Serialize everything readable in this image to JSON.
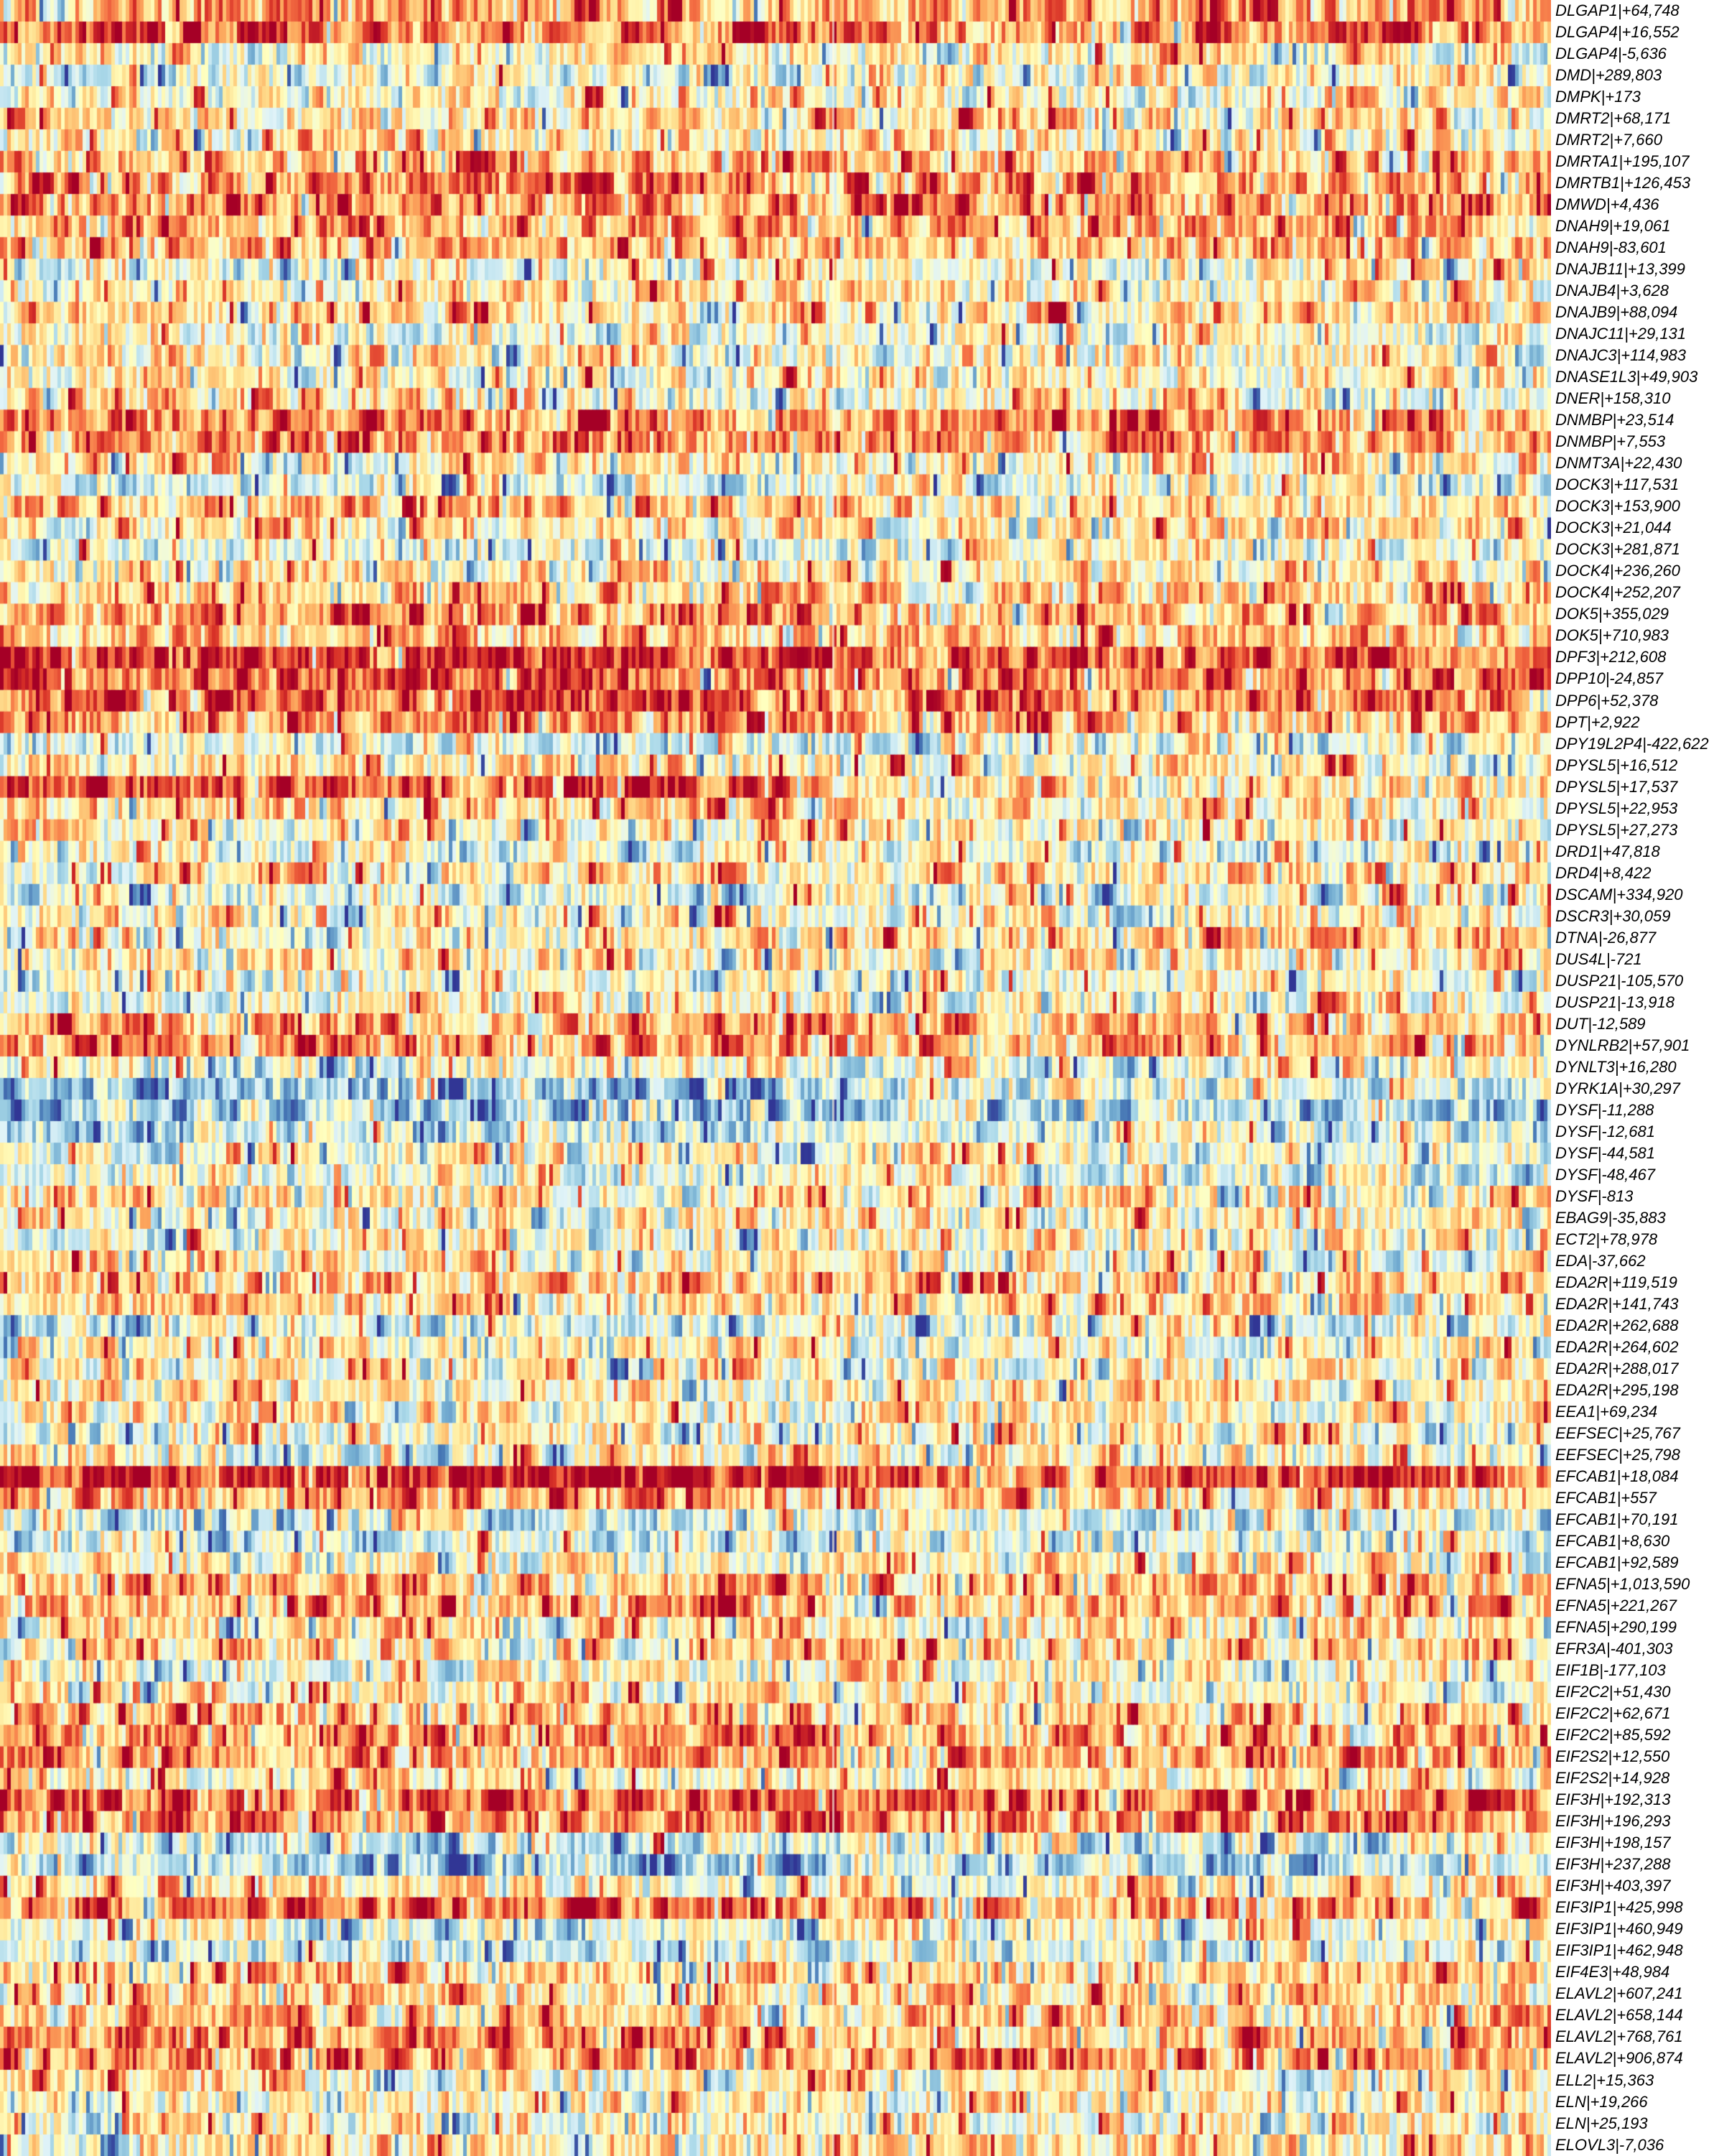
{
  "figure": {
    "background": "#ffffff",
    "description": "Genome-region heatmap: 100 labelled rows (gene|offset), ~430 unlabelled sample columns, red-yellow-blue colour scale, row labels in italics on the right"
  },
  "chart_data": {
    "type": "heatmap",
    "title": "",
    "xlabel": "",
    "ylabel": "",
    "column_labels_visible": false,
    "n_columns_approx": 432,
    "group_split_fraction": 0.537,
    "colormap": "RdYlBu reversed (blue = low, pale yellow = mid, red = high)",
    "palette": [
      "#313695",
      "#4575b4",
      "#74add1",
      "#abd9e9",
      "#e0f3f8",
      "#ffffbf",
      "#fee090",
      "#fdae61",
      "#f46d43",
      "#d73027",
      "#a50026"
    ],
    "value_scale": [
      -1,
      1
    ],
    "row_format": [
      "label",
      "mean_intensity_left_block",
      "mean_intensity_right_block"
    ],
    "rows": [
      [
        "DLGAP1|+64,748",
        0.4,
        0.4
      ],
      [
        "DLGAP4|+16,552",
        0.6,
        0.55
      ],
      [
        "DLGAP4|-5,636",
        0.0,
        0.05
      ],
      [
        "DMD|+289,803",
        -0.1,
        0.05
      ],
      [
        "DMPK|+173",
        0.05,
        0.0
      ],
      [
        "DMRT2|+68,171",
        0.2,
        0.15
      ],
      [
        "DMRT2|+7,660",
        0.1,
        0.15
      ],
      [
        "DMRTA1|+195,107",
        0.35,
        0.3
      ],
      [
        "DMRTB1|+126,453",
        0.55,
        0.45
      ],
      [
        "DMWD|+4,436",
        0.5,
        0.4
      ],
      [
        "DNAH9|+19,061",
        0.4,
        0.35
      ],
      [
        "DNAH9|-83,601",
        0.35,
        0.3
      ],
      [
        "DNAJB11|+13,399",
        -0.1,
        0.0
      ],
      [
        "DNAJB4|+3,628",
        0.1,
        0.05
      ],
      [
        "DNAJB9|+88,094",
        0.15,
        0.1
      ],
      [
        "DNAJC11|+29,131",
        -0.05,
        0.0
      ],
      [
        "DNAJC3|+114,983",
        0.05,
        0.05
      ],
      [
        "DNASE1L3|+49,903",
        0.0,
        0.05
      ],
      [
        "DNER|+158,310",
        0.1,
        0.05
      ],
      [
        "DNMBP|+23,514",
        0.5,
        0.45
      ],
      [
        "DNMBP|+7,553",
        0.45,
        0.35
      ],
      [
        "DNMT3A|+22,430",
        0.1,
        0.1
      ],
      [
        "DOCK3|+117,531",
        -0.15,
        -0.05
      ],
      [
        "DOCK3|+153,900",
        0.3,
        0.25
      ],
      [
        "DOCK3|+21,044",
        0.1,
        0.1
      ],
      [
        "DOCK3|+281,871",
        -0.1,
        -0.05
      ],
      [
        "DOCK4|+236,260",
        0.15,
        0.1
      ],
      [
        "DOCK4|+252,207",
        0.25,
        0.2
      ],
      [
        "DOK5|+355,029",
        0.4,
        0.3
      ],
      [
        "DOK5|+710,983",
        0.3,
        0.25
      ],
      [
        "DPF3|+212,608",
        0.8,
        0.6
      ],
      [
        "DPP10|-24,857",
        0.6,
        0.5
      ],
      [
        "DPP6|+52,378",
        0.65,
        0.5
      ],
      [
        "DPT|+2,922",
        0.45,
        0.3
      ],
      [
        "DPY19L2P4|-422,622",
        -0.2,
        -0.1
      ],
      [
        "DPYSL5|+16,512",
        0.1,
        0.1
      ],
      [
        "DPYSL5|+17,537",
        0.7,
        0.15
      ],
      [
        "DPYSL5|+22,953",
        0.15,
        0.1
      ],
      [
        "DPYSL5|+27,273",
        0.05,
        0.05
      ],
      [
        "DRD1|+47,818",
        -0.1,
        0.0
      ],
      [
        "DRD4|+8,422",
        0.05,
        0.1
      ],
      [
        "DSCAM|+334,920",
        -0.15,
        -0.05
      ],
      [
        "DSCR3|+30,059",
        0.05,
        0.0
      ],
      [
        "DTNA|-26,877",
        0.1,
        0.25
      ],
      [
        "DUS4L|-721",
        0.1,
        0.05
      ],
      [
        "DUSP21|-105,570",
        -0.1,
        -0.05
      ],
      [
        "DUSP21|-13,918",
        0.0,
        0.0
      ],
      [
        "DUT|-12,589",
        0.4,
        0.25
      ],
      [
        "DYNLRB2|+57,901",
        0.5,
        0.4
      ],
      [
        "DYNLT3|+16,280",
        -0.05,
        0.0
      ],
      [
        "DYRK1A|+30,297",
        -0.45,
        -0.2
      ],
      [
        "DYSF|-11,288",
        -0.45,
        -0.3
      ],
      [
        "DYSF|-12,681",
        -0.25,
        -0.15
      ],
      [
        "DYSF|-44,581",
        0.0,
        -0.05
      ],
      [
        "DYSF|-48,467",
        -0.1,
        -0.05
      ],
      [
        "DYSF|-813",
        0.05,
        0.05
      ],
      [
        "EBAG9|-35,883",
        0.05,
        0.1
      ],
      [
        "ECT2|+78,978",
        0.0,
        0.05
      ],
      [
        "EDA|-37,662",
        0.05,
        0.0
      ],
      [
        "EDA2R|+119,519",
        0.3,
        0.25
      ],
      [
        "EDA2R|+141,743",
        0.2,
        0.15
      ],
      [
        "EDA2R|+262,688",
        -0.15,
        -0.1
      ],
      [
        "EDA2R|+264,602",
        0.0,
        0.05
      ],
      [
        "EDA2R|+288,017",
        0.05,
        0.0
      ],
      [
        "EDA2R|+295,198",
        0.1,
        0.1
      ],
      [
        "EEA1|+69,234",
        0.05,
        0.05
      ],
      [
        "EEFSEC|+25,767",
        -0.05,
        0.0
      ],
      [
        "EEFSEC|+25,798",
        0.0,
        0.05
      ],
      [
        "EFCAB1|+18,084",
        0.85,
        0.7
      ],
      [
        "EFCAB1|+557",
        0.3,
        0.25
      ],
      [
        "EFCAB1|+70,191",
        -0.2,
        -0.1
      ],
      [
        "EFCAB1|+8,630",
        -0.25,
        -0.15
      ],
      [
        "EFCAB1|+92,589",
        0.0,
        0.0
      ],
      [
        "EFNA5|+1,013,590",
        0.35,
        0.3
      ],
      [
        "EFNA5|+221,267",
        0.4,
        0.3
      ],
      [
        "EFNA5|+290,199",
        0.1,
        0.1
      ],
      [
        "EFR3A|-401,303",
        0.15,
        0.1
      ],
      [
        "EIF1B|-177,103",
        -0.1,
        0.0
      ],
      [
        "EIF2C2|+51,430",
        0.1,
        0.1
      ],
      [
        "EIF2C2|+62,671",
        0.3,
        0.25
      ],
      [
        "EIF2C2|+85,592",
        0.4,
        0.3
      ],
      [
        "EIF2S2|+12,550",
        0.45,
        0.35
      ],
      [
        "EIF2S2|+14,928",
        0.1,
        0.1
      ],
      [
        "EIF3H|+192,313",
        0.6,
        0.55
      ],
      [
        "EIF3H|+196,293",
        0.55,
        0.5
      ],
      [
        "EIF3H|+198,157",
        -0.2,
        -0.1
      ],
      [
        "EIF3H|+237,288",
        -0.4,
        -0.3
      ],
      [
        "EIF3H|+403,397",
        0.1,
        0.1
      ],
      [
        "EIF3IP1|+425,998",
        0.5,
        0.4
      ],
      [
        "EIF3IP1|+460,949",
        -0.1,
        0.0
      ],
      [
        "EIF3IP1|+462,948",
        -0.2,
        -0.1
      ],
      [
        "EIF4E3|+48,984",
        0.25,
        0.2
      ],
      [
        "ELAVL2|+607,241",
        0.2,
        0.2
      ],
      [
        "ELAVL2|+658,144",
        0.3,
        0.25
      ],
      [
        "ELAVL2|+768,761",
        0.45,
        0.35
      ],
      [
        "ELAVL2|+906,874",
        0.5,
        0.4
      ],
      [
        "ELL2|+15,363",
        0.1,
        0.1
      ],
      [
        "ELN|+19,266",
        0.05,
        0.05
      ],
      [
        "ELN|+25,193",
        -0.05,
        0.0
      ],
      [
        "ELOVL3|-7,036",
        0.1,
        0.15
      ]
    ]
  }
}
